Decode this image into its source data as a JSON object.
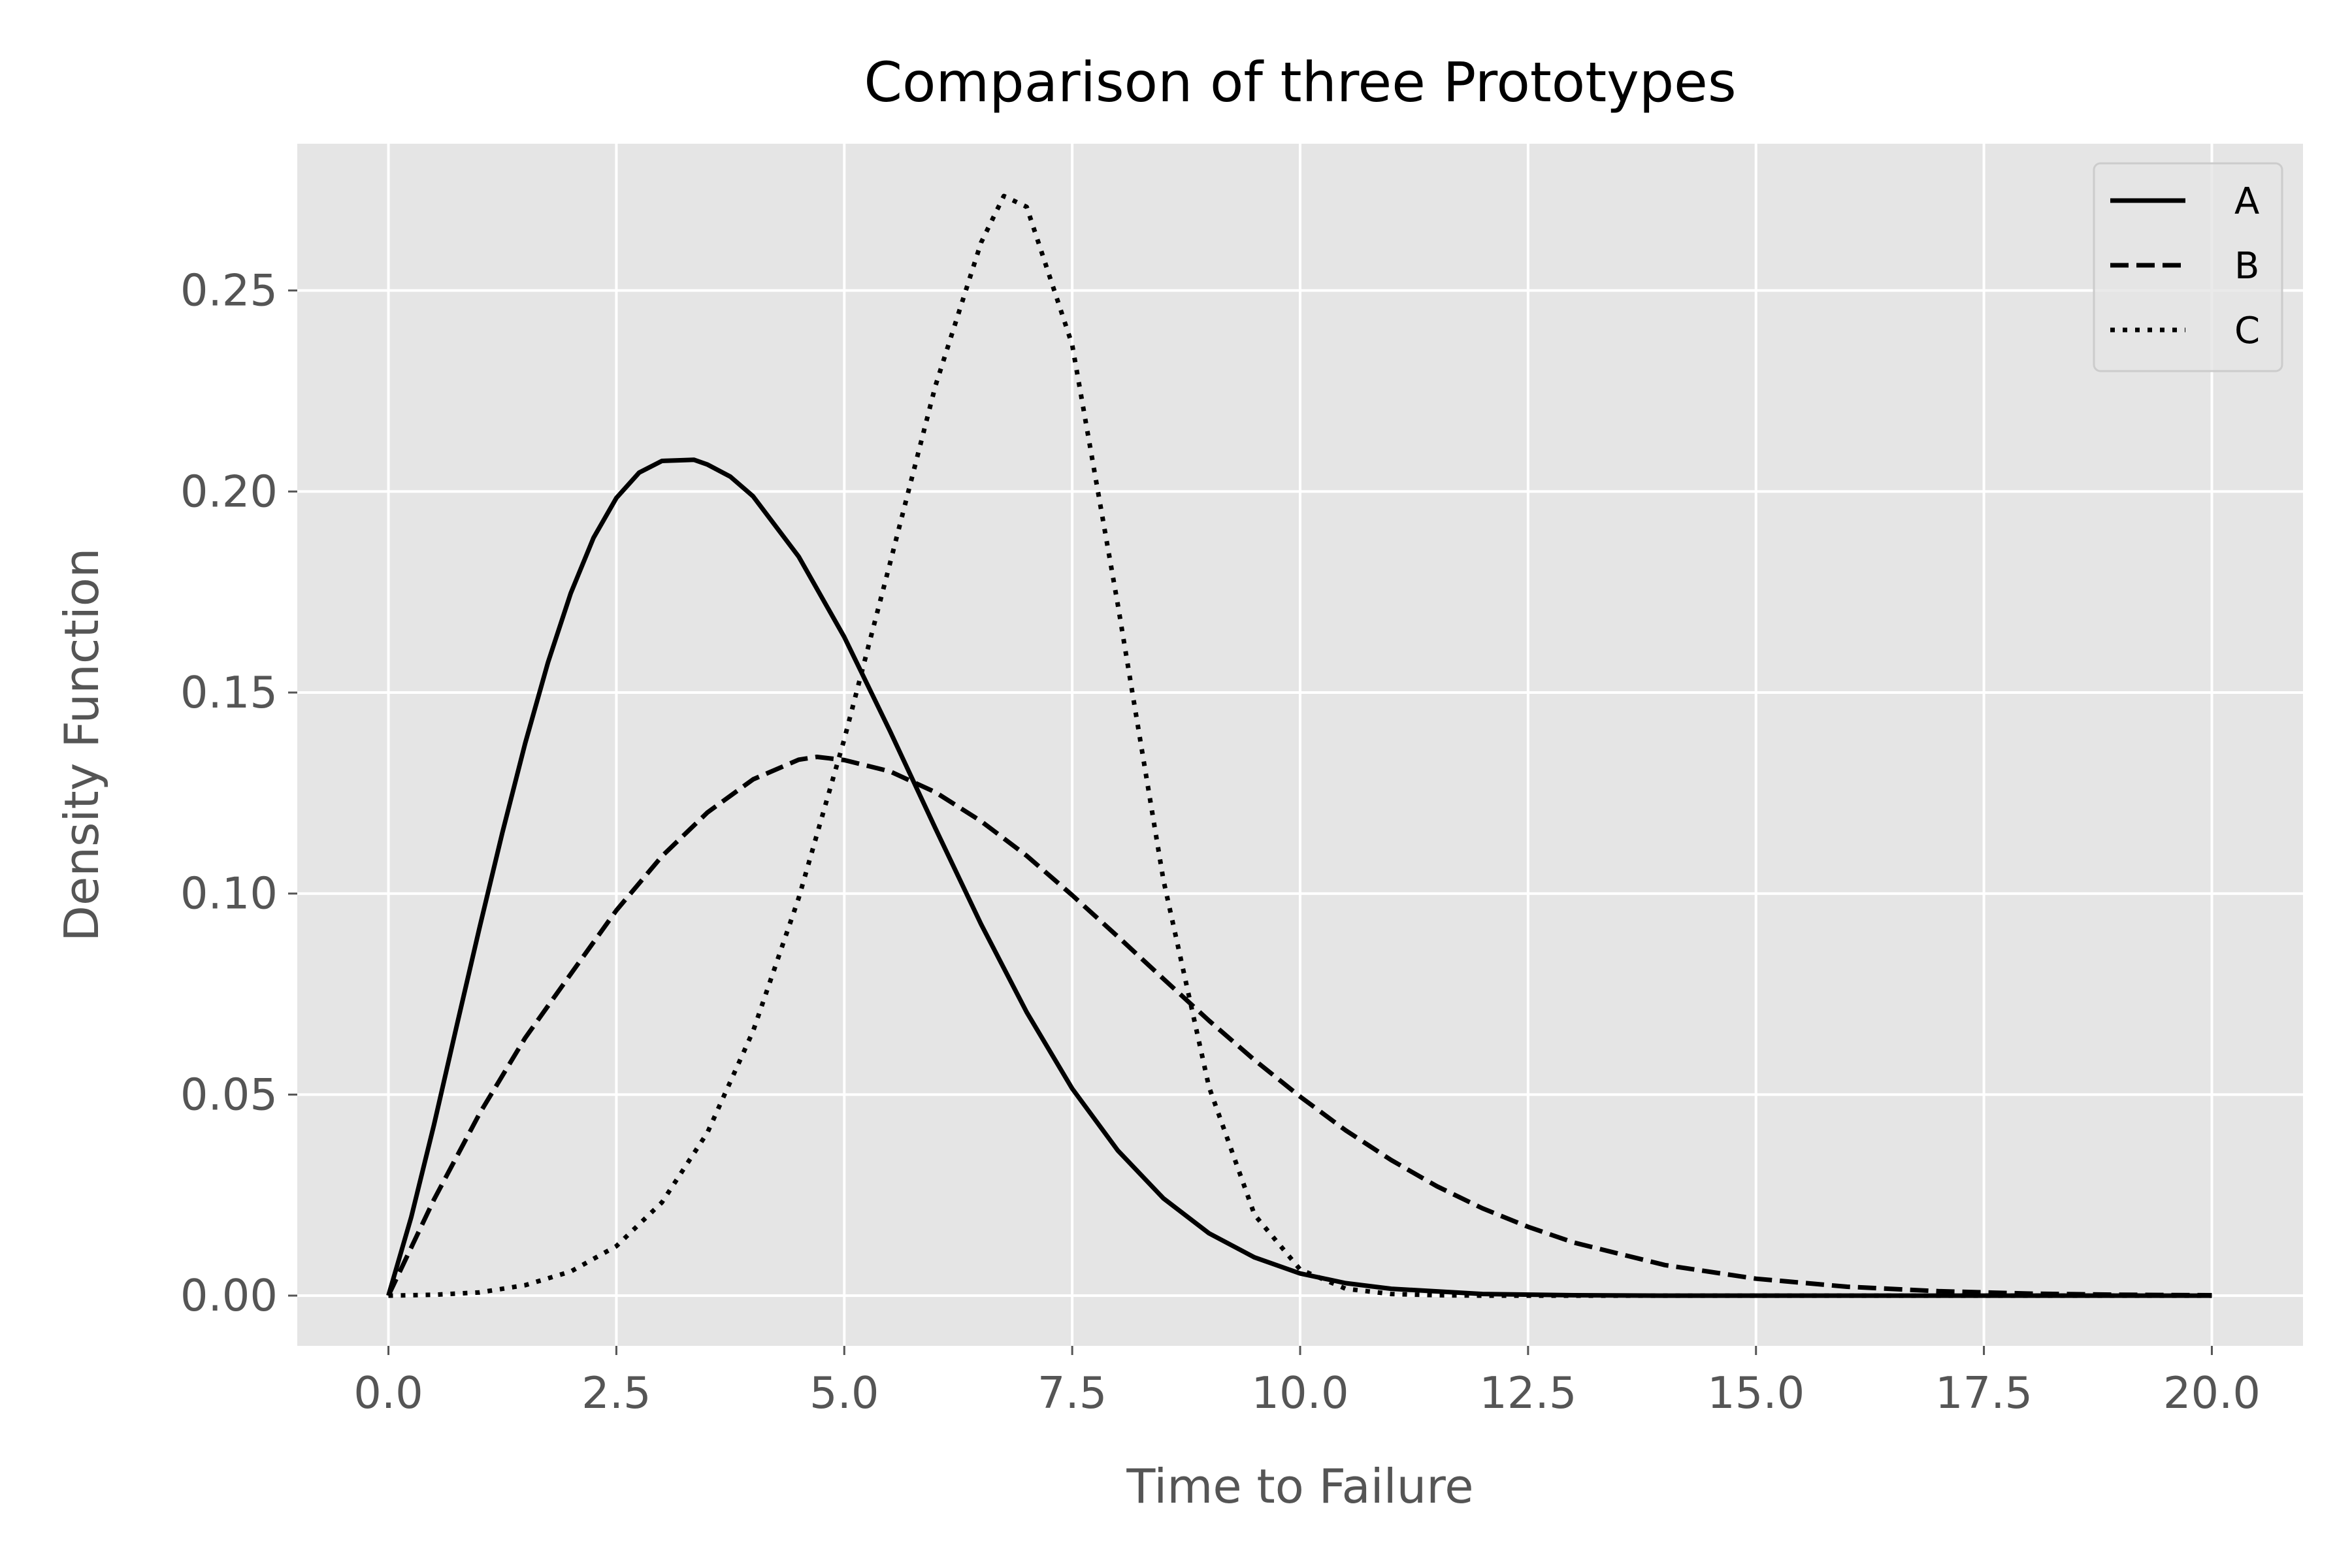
{
  "chart_data": {
    "type": "line",
    "title": "Comparison of three Prototypes",
    "xlabel": "Time to Failure",
    "ylabel": "Density Function",
    "xlim": [
      -1,
      21
    ],
    "ylim": [
      -0.0125,
      0.2865
    ],
    "xticks": [
      0,
      2.5,
      5,
      7.5,
      10,
      12.5,
      15,
      17.5,
      20
    ],
    "xtick_labels": [
      "0.0",
      "2.5",
      "5.0",
      "7.5",
      "10.0",
      "12.5",
      "15.0",
      "17.5",
      "20.0"
    ],
    "yticks": [
      0,
      0.05,
      0.1,
      0.15,
      0.2,
      0.25
    ],
    "ytick_labels": [
      "0.00",
      "0.05",
      "0.10",
      "0.15",
      "0.20",
      "0.25"
    ],
    "grid": true,
    "legend_position": "top-right",
    "background": "#e5e5e5",
    "series": [
      {
        "name": "A",
        "style": "solid",
        "x": [
          0,
          0.25,
          0.5,
          0.75,
          1,
          1.25,
          1.5,
          1.75,
          2,
          2.25,
          2.5,
          2.75,
          3,
          3.25,
          3.35,
          3.5,
          3.75,
          4,
          4.5,
          5,
          5.5,
          6,
          6.5,
          7,
          7.5,
          8,
          8.5,
          9,
          9.5,
          10,
          10.5,
          11,
          12,
          13,
          14,
          15,
          16,
          17,
          18,
          19,
          20
        ],
        "y": [
          0,
          0.0195,
          0.0425,
          0.0672,
          0.0916,
          0.1152,
          0.1374,
          0.1575,
          0.1747,
          0.1885,
          0.1984,
          0.2047,
          0.2076,
          0.2078,
          0.2079,
          0.2067,
          0.2037,
          0.1988,
          0.1838,
          0.1638,
          0.1405,
          0.1162,
          0.0924,
          0.0705,
          0.0515,
          0.0361,
          0.0242,
          0.0155,
          0.0095,
          0.0055,
          0.0031,
          0.0017,
          0.0004,
          0.0001,
          0,
          0,
          0,
          0,
          0,
          0,
          0
        ]
      },
      {
        "name": "B",
        "style": "dashed",
        "x": [
          0,
          0.5,
          1,
          1.5,
          2,
          2.5,
          3,
          3.5,
          4,
          4.5,
          4.7,
          5,
          5.5,
          6,
          6.5,
          7,
          7.5,
          8,
          8.5,
          9,
          9.5,
          10,
          10.5,
          11,
          11.5,
          12,
          12.5,
          13,
          14,
          15,
          16,
          17,
          18,
          19,
          20
        ],
        "y": [
          0,
          0.0239,
          0.0453,
          0.0641,
          0.08,
          0.0958,
          0.1093,
          0.1202,
          0.1284,
          0.1333,
          0.134,
          0.1332,
          0.1304,
          0.1252,
          0.118,
          0.1094,
          0.0996,
          0.0893,
          0.0788,
          0.0684,
          0.0586,
          0.0495,
          0.0411,
          0.0337,
          0.0272,
          0.0217,
          0.0171,
          0.0132,
          0.0076,
          0.0042,
          0.0022,
          0.0011,
          0.0005,
          0.0002,
          0.0001
        ]
      },
      {
        "name": "C",
        "style": "dotted",
        "x": [
          0,
          0.5,
          1,
          1.5,
          2,
          2.5,
          3,
          3.5,
          4,
          4.5,
          5,
          5.5,
          6,
          6.5,
          6.75,
          7,
          7.5,
          8,
          8.5,
          9,
          9.5,
          10,
          10.5,
          11,
          11.5,
          12,
          13,
          14,
          15,
          16,
          17,
          18,
          19,
          20
        ],
        "y": [
          0,
          0.0002,
          0.0008,
          0.0026,
          0.006,
          0.0123,
          0.0232,
          0.0406,
          0.0658,
          0.0989,
          0.1384,
          0.182,
          0.2263,
          0.2619,
          0.2735,
          0.2708,
          0.2365,
          0.1719,
          0.1034,
          0.0519,
          0.0201,
          0.0065,
          0.0017,
          0.0004,
          0.0001,
          0,
          0,
          0,
          0,
          0,
          0,
          0,
          0,
          0
        ]
      }
    ]
  }
}
